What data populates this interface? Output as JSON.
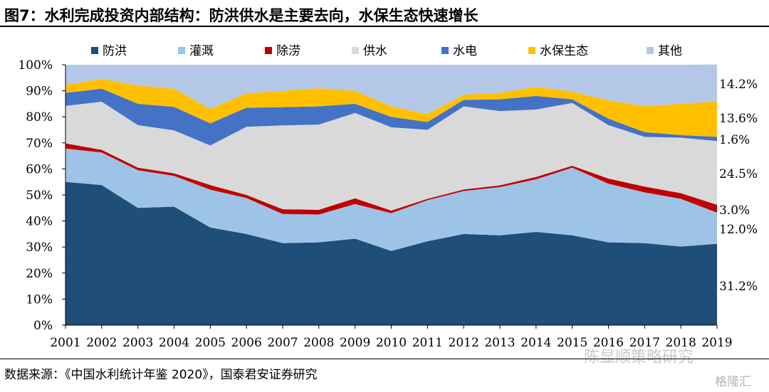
{
  "title": "图7：水利完成投资内部结构：防洪供水是主要去向，水保生态快速增长",
  "source": "数据来源：《中国水利统计年鉴 2020》，国泰君安证券研究",
  "watermark": "陈显顺策略研究",
  "watermark_2": "格隆汇",
  "chart_data": {
    "type": "area",
    "stacked": true,
    "x": [
      "2001",
      "2002",
      "2003",
      "2004",
      "2005",
      "2006",
      "2007",
      "2008",
      "2009",
      "2010",
      "2011",
      "2012",
      "2013",
      "2014",
      "2015",
      "2016",
      "2017",
      "2018",
      "2019"
    ],
    "ylim": [
      0,
      100
    ],
    "yticks": [
      "0%",
      "10%",
      "20%",
      "30%",
      "40%",
      "50%",
      "60%",
      "70%",
      "80%",
      "90%",
      "100%"
    ],
    "grid": false,
    "legend_position": "top",
    "series": [
      {
        "name": "防洪",
        "color": "#1f4e79",
        "values": [
          55,
          53.8,
          45,
          45.5,
          37.5,
          35,
          31.5,
          31.8,
          33.2,
          28.5,
          32.2,
          35,
          34.5,
          35.8,
          34.5,
          31.8,
          31.5,
          30.2,
          31.2
        ]
      },
      {
        "name": "灌溉",
        "color": "#9dc3e6",
        "values": [
          12.8,
          12.5,
          14.5,
          11.8,
          14.5,
          13.8,
          11.2,
          10.7,
          13.3,
          14.5,
          15.8,
          16.5,
          18.5,
          20.2,
          26,
          22.5,
          19.5,
          18.3,
          12
        ]
      },
      {
        "name": "除涝",
        "color": "#c00000",
        "values": [
          2,
          1,
          1,
          1,
          1.8,
          1.2,
          1.8,
          1.8,
          2.2,
          1,
          0.5,
          0.6,
          0.7,
          0.9,
          0.7,
          2,
          2.2,
          2.2,
          3
        ]
      },
      {
        "name": "供水",
        "color": "#d9d9d9",
        "values": [
          14.4,
          18.5,
          16.3,
          16.5,
          15.2,
          26.2,
          32.2,
          32.7,
          32.8,
          32,
          26.5,
          31.9,
          28.5,
          25.9,
          24.1,
          20.5,
          19.1,
          21.3,
          24.5
        ]
      },
      {
        "name": "水电",
        "color": "#4472c4",
        "values": [
          5,
          5,
          8.2,
          9,
          8.5,
          7.3,
          7,
          7,
          3.5,
          4,
          3,
          2.5,
          4.5,
          5.2,
          1.4,
          2.5,
          1.8,
          1,
          1.6
        ]
      },
      {
        "name": "水保生态",
        "color": "#ffc000",
        "values": [
          3,
          3.8,
          7,
          7,
          5.5,
          5.5,
          6.3,
          7,
          5,
          4,
          3,
          2,
          2.5,
          3.5,
          3,
          7,
          10,
          12,
          13.6
        ]
      },
      {
        "name": "其他",
        "color": "#b4c7e7",
        "values": [
          7.8,
          5.4,
          8,
          9.2,
          17,
          11,
          10,
          9,
          10,
          16,
          19,
          11.5,
          10.8,
          8.5,
          10.3,
          13.7,
          15.9,
          15,
          14.2
        ]
      }
    ],
    "end_labels": [
      "14.2%",
      "13.6%",
      "1.6%",
      "24.5%",
      "3.0%",
      "12.0%",
      "31.2%"
    ]
  }
}
